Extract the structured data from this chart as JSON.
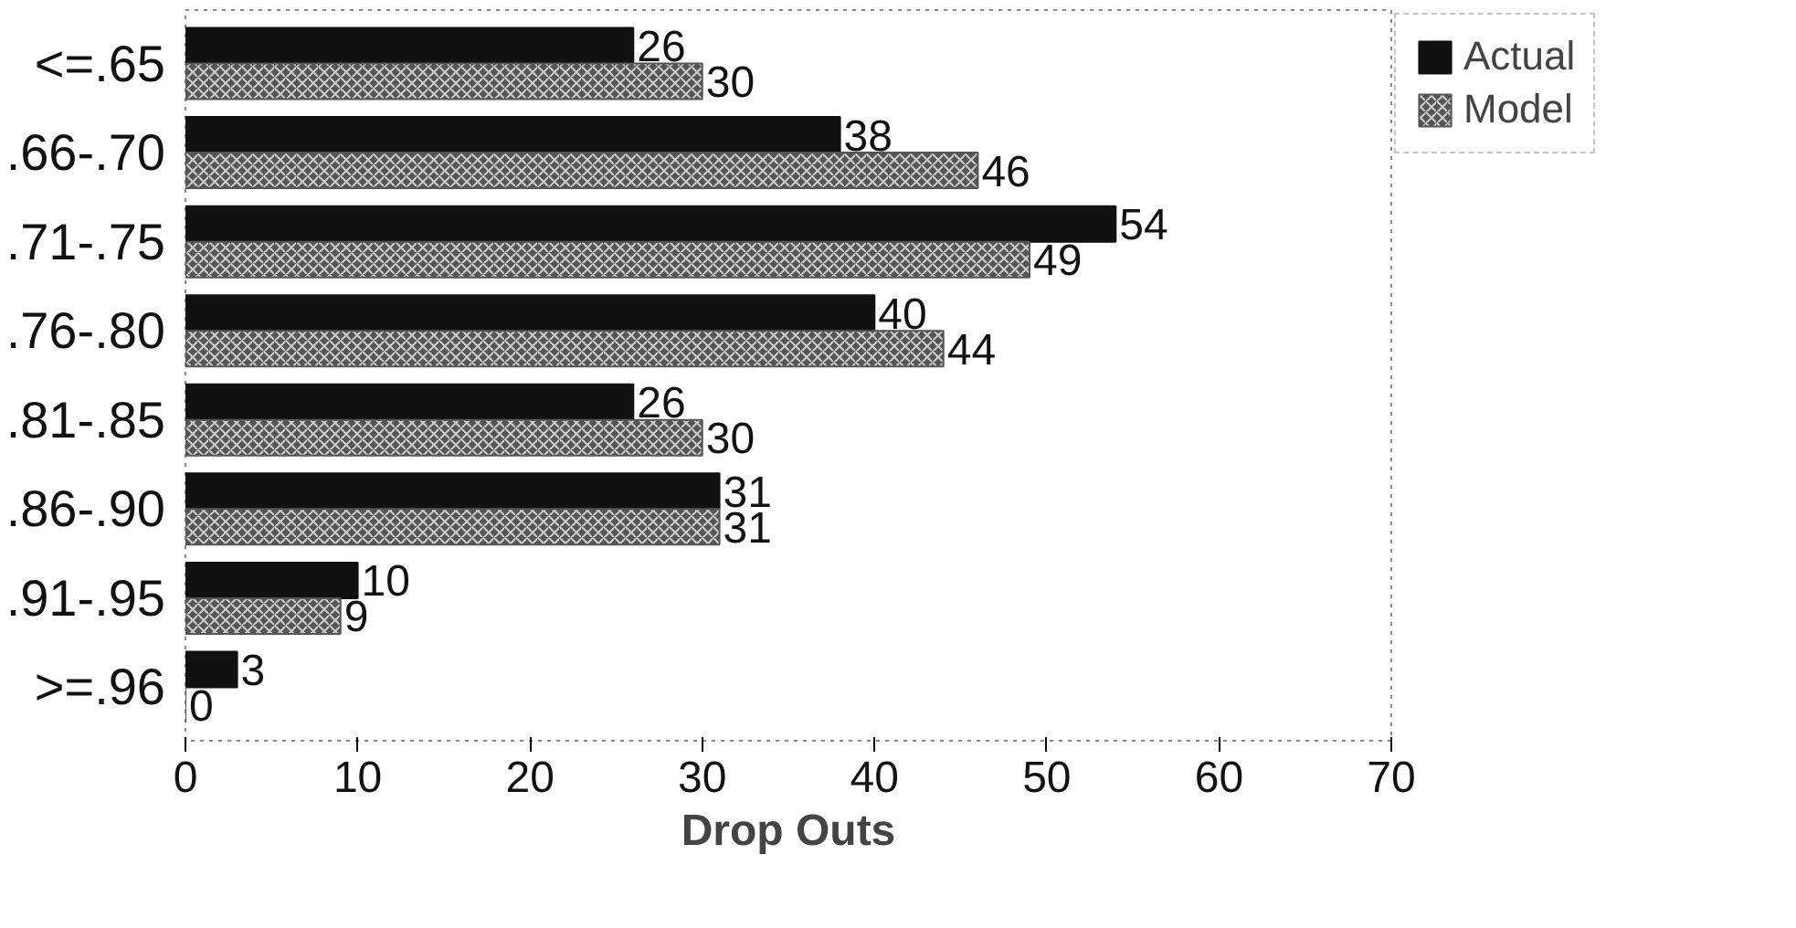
{
  "chart_data": {
    "type": "bar",
    "orientation": "horizontal",
    "xlabel": "Drop Outs",
    "categories": [
      "<=.65",
      ".66-.70",
      ".71-.75",
      ".76-.80",
      ".81-.85",
      ".86-.90",
      ".91-.95",
      ">=.96"
    ],
    "series": [
      {
        "name": "Actual",
        "color": "#111111",
        "values": [
          26,
          38,
          54,
          40,
          26,
          31,
          10,
          3
        ]
      },
      {
        "name": "Model",
        "color": "#555555",
        "values": [
          30,
          46,
          49,
          44,
          30,
          31,
          9,
          0
        ]
      }
    ],
    "xlim": [
      0,
      70
    ],
    "xticks": [
      0,
      10,
      20,
      30,
      40,
      50,
      60,
      70
    ],
    "data_labels": true,
    "legend": "top right",
    "grid": false
  }
}
